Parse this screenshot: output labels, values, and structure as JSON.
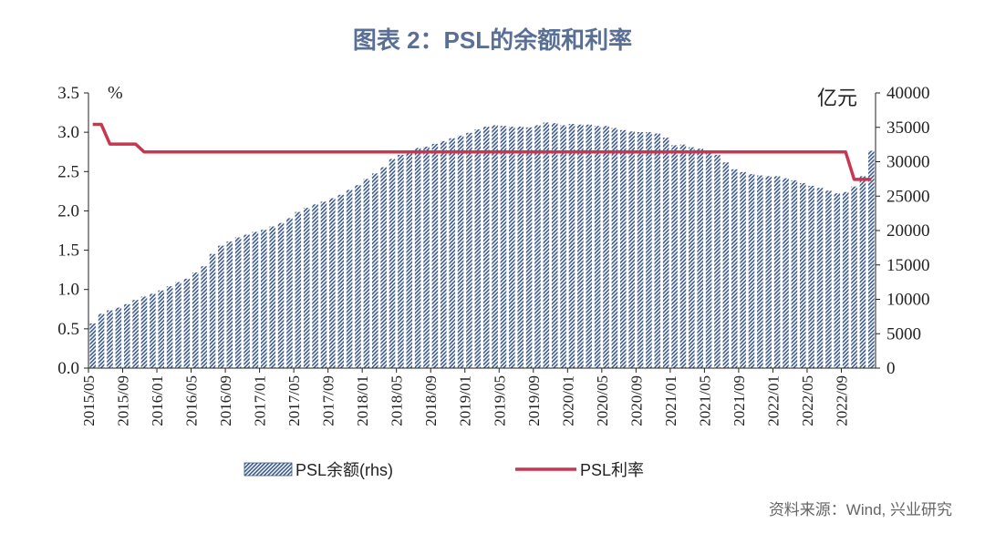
{
  "title": "图表 2：PSL的余额和利率",
  "source": "资料来源：Wind, 兴业研究",
  "colors": {
    "bar": "#3d5a8a",
    "line": "#c8374f",
    "title": "#5a6f95"
  },
  "chart_data": {
    "type": "bar+line",
    "left_unit": "%",
    "right_unit": "亿元",
    "left_ylim": [
      0,
      3.5
    ],
    "right_ylim": [
      0,
      40000
    ],
    "left_ticks": [
      "0.0",
      "0.5",
      "1.0",
      "1.5",
      "2.0",
      "2.5",
      "3.0",
      "3.5"
    ],
    "right_ticks": [
      "0",
      "5000",
      "10000",
      "15000",
      "20000",
      "25000",
      "30000",
      "35000",
      "40000"
    ],
    "x_tick_labels": [
      "2015/05",
      "2015/09",
      "2016/01",
      "2016/05",
      "2016/09",
      "2017/01",
      "2017/05",
      "2017/09",
      "2018/01",
      "2018/05",
      "2018/09",
      "2019/01",
      "2019/05",
      "2019/09",
      "2020/01",
      "2020/05",
      "2020/09",
      "2021/01",
      "2021/05",
      "2021/09",
      "2022/01",
      "2022/05",
      "2022/09"
    ],
    "grid": false,
    "legend_position": "bottom",
    "series": [
      {
        "name": "PSL余额(rhs)",
        "kind": "bar",
        "axis": "right",
        "start": "2015/05",
        "values": [
          6500,
          7900,
          8400,
          8800,
          9300,
          9900,
          10400,
          10800,
          11300,
          11900,
          12500,
          13000,
          13900,
          14800,
          16600,
          17800,
          18400,
          19000,
          19400,
          19800,
          20100,
          20600,
          21100,
          21800,
          22700,
          23300,
          23800,
          24200,
          24700,
          25200,
          25900,
          26600,
          27500,
          28300,
          29200,
          30400,
          31000,
          31600,
          32000,
          32200,
          32600,
          33000,
          33400,
          33800,
          34200,
          34700,
          35100,
          35300,
          35200,
          35100,
          35100,
          35000,
          35300,
          35700,
          35600,
          35300,
          35500,
          35400,
          35400,
          35200,
          35200,
          34900,
          34600,
          34400,
          34300,
          34300,
          34100,
          33500,
          32400,
          32500,
          32100,
          31900,
          31600,
          31000,
          29900,
          28900,
          28500,
          28200,
          28000,
          27900,
          27900,
          27600,
          27300,
          26900,
          26500,
          26200,
          25800,
          25400,
          25600,
          26400,
          27900,
          31600
        ]
      },
      {
        "name": "PSL利率",
        "kind": "line",
        "axis": "left",
        "start": "2015/05",
        "values": [
          3.1,
          3.1,
          2.85,
          2.85,
          2.85,
          2.85,
          2.75,
          2.75,
          2.75,
          2.75,
          2.75,
          2.75,
          2.75,
          2.75,
          2.75,
          2.75,
          2.75,
          2.75,
          2.75,
          2.75,
          2.75,
          2.75,
          2.75,
          2.75,
          2.75,
          2.75,
          2.75,
          2.75,
          2.75,
          2.75,
          2.75,
          2.75,
          2.75,
          2.75,
          2.75,
          2.75,
          2.75,
          2.75,
          2.75,
          2.75,
          2.75,
          2.75,
          2.75,
          2.75,
          2.75,
          2.75,
          2.75,
          2.75,
          2.75,
          2.75,
          2.75,
          2.75,
          2.75,
          2.75,
          2.75,
          2.75,
          2.75,
          2.75,
          2.75,
          2.75,
          2.75,
          2.75,
          2.75,
          2.75,
          2.75,
          2.75,
          2.75,
          2.75,
          2.75,
          2.75,
          2.75,
          2.75,
          2.75,
          2.75,
          2.75,
          2.75,
          2.75,
          2.75,
          2.75,
          2.75,
          2.75,
          2.75,
          2.75,
          2.75,
          2.75,
          2.75,
          2.75,
          2.75,
          2.75,
          2.4,
          2.4,
          2.4
        ]
      }
    ]
  }
}
